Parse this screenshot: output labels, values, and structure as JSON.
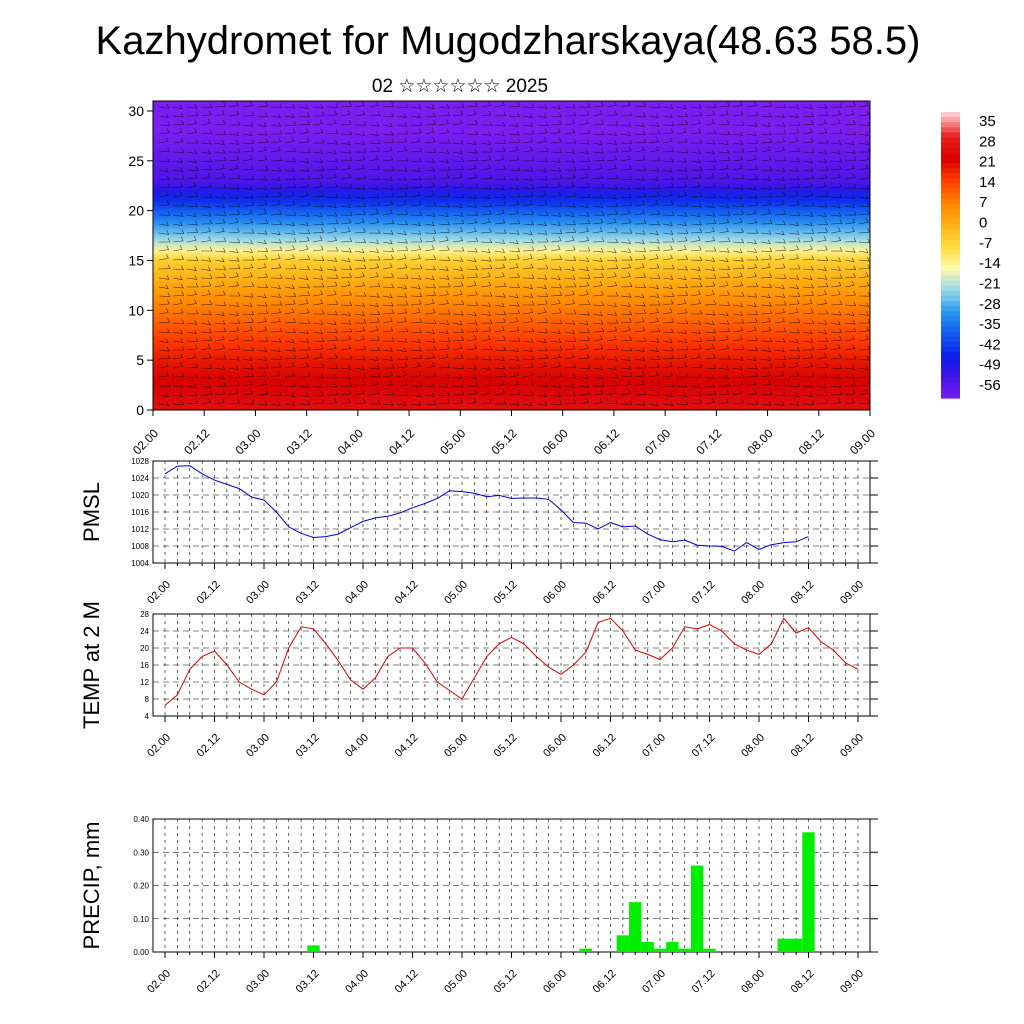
{
  "header": {
    "title": "Kazhydromet for Mugodzharskaya(48.63 58.5)",
    "subtitle": "02 ☆☆☆☆☆☆ 2025"
  },
  "colors": {
    "pmsl_line": "#0000cc",
    "temp_line": "#dd0000",
    "precip_bar": "#00ee00",
    "grid": "#000000"
  },
  "time_ticks": [
    "02.00",
    "02.12",
    "03.00",
    "03.12",
    "04.00",
    "04.12",
    "05.00",
    "05.12",
    "06.00",
    "06.12",
    "07.00",
    "07.12",
    "08.00",
    "08.12",
    "09.00"
  ],
  "chart_data": [
    {
      "type": "heatmap",
      "name": "cross-section",
      "x": "time_ticks",
      "y_ticks": [
        0,
        5,
        10,
        15,
        20,
        25,
        30
      ],
      "ylim": [
        0,
        31
      ],
      "colorbar_ticks": [
        "35",
        "28",
        "21",
        "14",
        "7",
        "0",
        "-7",
        "-14",
        "-21",
        "-28",
        "-35",
        "-42",
        "-49",
        "-56"
      ],
      "temperature_profile": [
        {
          "level": 0,
          "value": 25
        },
        {
          "level": 5,
          "value": 18
        },
        {
          "level": 10,
          "value": 8
        },
        {
          "level": 15,
          "value": -5
        },
        {
          "level": 17,
          "value": -20
        },
        {
          "level": 20,
          "value": -35
        },
        {
          "level": 23,
          "value": -50
        },
        {
          "level": 28,
          "value": -56
        },
        {
          "level": 31,
          "value": -56
        }
      ]
    },
    {
      "type": "line",
      "name": "pmsl",
      "ylabel": "PMSL",
      "ylim": [
        1004,
        1028
      ],
      "y_ticks": [
        1004,
        1008,
        1012,
        1016,
        1020,
        1024,
        1028
      ],
      "x_step_hours": 3,
      "values": [
        1025,
        1026.8,
        1026.9,
        1025,
        1023.5,
        1022.5,
        1021.5,
        1019.5,
        1018.8,
        1016,
        1012.5,
        1011,
        1010,
        1010.2,
        1010.8,
        1012.3,
        1013.8,
        1014.6,
        1015,
        1015.8,
        1017,
        1018,
        1019.2,
        1021,
        1020.8,
        1020.4,
        1019.6,
        1019.9,
        1019.2,
        1019.3,
        1019.3,
        1019,
        1016.5,
        1013.5,
        1013.4,
        1012,
        1013.5,
        1012.5,
        1012.7,
        1010.8,
        1009.5,
        1009,
        1009.4,
        1008.2,
        1008,
        1007.9,
        1006.8,
        1008.8,
        1007.2,
        1008.3,
        1008.8,
        1009,
        1010.2
      ]
    },
    {
      "type": "line",
      "name": "temp2m",
      "ylabel": "TEMP at 2 M",
      "ylim": [
        4,
        28
      ],
      "y_ticks": [
        4,
        8,
        12,
        16,
        20,
        24,
        28
      ],
      "x_step_hours": 3,
      "values": [
        6.5,
        9,
        15,
        18,
        19.3,
        16,
        12,
        10.3,
        9,
        12,
        20,
        25,
        24.5,
        21,
        17,
        12.5,
        10.3,
        13,
        18,
        20,
        20,
        16.5,
        12,
        10,
        8,
        13,
        18,
        21,
        22.5,
        21,
        18,
        15.5,
        13.8,
        16,
        19,
        26,
        27,
        24,
        19.5,
        18.5,
        17.3,
        20,
        25,
        24.5,
        25.5,
        24,
        21,
        19.5,
        18.5,
        21,
        27,
        23.5,
        24.8,
        21.5,
        19.5,
        16.5,
        15
      ]
    },
    {
      "type": "bar",
      "name": "precip",
      "ylabel": "PRECIP, mm",
      "ylim": [
        0,
        0.4
      ],
      "y_ticks": [
        "0.00",
        "0.10",
        "0.20",
        "0.30",
        "0.40"
      ],
      "x_step_hours": 3,
      "values": [
        0,
        0,
        0,
        0,
        0,
        0,
        0,
        0,
        0,
        0,
        0,
        0,
        0.02,
        0,
        0,
        0,
        0,
        0,
        0,
        0,
        0,
        0,
        0,
        0,
        0,
        0,
        0,
        0,
        0,
        0,
        0,
        0,
        0,
        0,
        0.01,
        0,
        0,
        0.05,
        0.15,
        0.03,
        0.01,
        0.03,
        0.01,
        0.26,
        0.01,
        0,
        0,
        0,
        0,
        0,
        0.04,
        0.04,
        0.36,
        0,
        0,
        0
      ]
    }
  ]
}
